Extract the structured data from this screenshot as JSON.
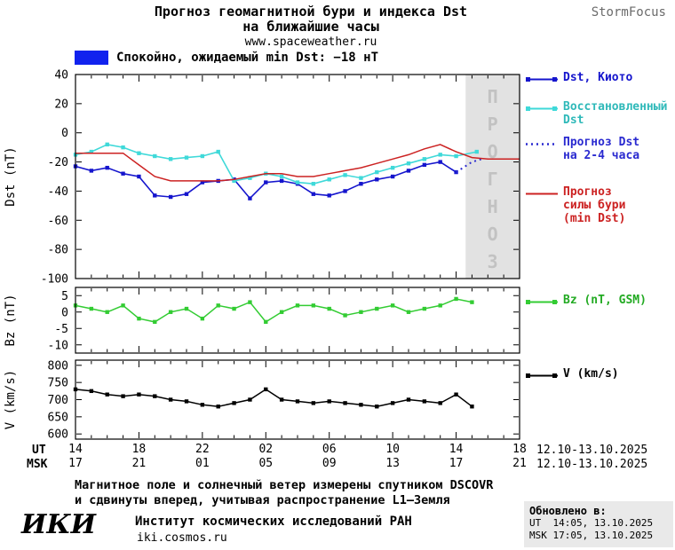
{
  "header": {
    "title_line1": "Прогноз геомагнитной бури и индекса Dst",
    "title_line2": "на ближайшие часы",
    "url": "www.spaceweather.ru",
    "brand": "StormFocus"
  },
  "status": {
    "label": "Спокойно, ожидаемый min Dst: −18 нТ",
    "box_color": "#1122ee"
  },
  "chart_data": [
    {
      "id": "dst",
      "type": "line",
      "ylabel": "Dst (nT)",
      "x_note": "hours since 12.10.2025 14:00 UT",
      "xlim": [
        0,
        28
      ],
      "ylim": [
        -100,
        40
      ],
      "yticks": [
        40,
        20,
        0,
        -20,
        -40,
        -60,
        -80,
        -100
      ],
      "xticks": [
        0,
        4,
        8,
        12,
        16,
        20,
        24,
        28
      ],
      "forecast_band": {
        "start": 24.6,
        "end": 28,
        "label": "ПРОГНОЗ"
      },
      "series": [
        {
          "key": "dst-kyoto",
          "name": "Dst, Киото",
          "color": "#1515cd",
          "marker": "square",
          "lw": 1.6,
          "x": [
            0,
            1,
            2,
            3,
            4,
            5,
            6,
            7,
            8,
            9,
            10,
            11,
            12,
            13,
            14,
            15,
            16,
            17,
            18,
            19,
            20,
            21,
            22,
            23,
            24
          ],
          "y": [
            -23,
            -26,
            -24,
            -28,
            -30,
            -43,
            -44,
            -42,
            -34,
            -33,
            -32,
            -45,
            -34,
            -33,
            -35,
            -42,
            -43,
            -40,
            -35,
            -32,
            -30,
            -26,
            -22,
            -20,
            -27
          ]
        },
        {
          "key": "dst-recovered",
          "name": "Восстановленный Dst",
          "color": "#3fd9d9",
          "marker": "square",
          "lw": 1.6,
          "x": [
            0,
            1,
            2,
            3,
            4,
            5,
            6,
            7,
            8,
            9,
            10,
            11,
            12,
            13,
            14,
            15,
            16,
            17,
            18,
            19,
            20,
            21,
            22,
            23,
            24,
            25.3
          ],
          "y": [
            -15,
            -13,
            -8,
            -10,
            -14,
            -16,
            -18,
            -17,
            -16,
            -13,
            -33,
            -31,
            -28,
            -30,
            -34,
            -35,
            -32,
            -29,
            -31,
            -27,
            -24,
            -21,
            -18,
            -15,
            -16,
            -13
          ]
        },
        {
          "key": "dst-forecast",
          "name": "Прогноз Dst на 2-4 часа",
          "color": "#2a2ad0",
          "dash": "2,4",
          "lw": 2,
          "x": [
            24,
            25,
            25.6
          ],
          "y": [
            -27,
            -20,
            -18
          ]
        },
        {
          "key": "storm-strength-forecast",
          "name": "Прогноз силы бури (min Dst)",
          "color": "#cc2222",
          "lw": 1.5,
          "x": [
            0,
            1,
            2,
            3,
            4,
            5,
            6,
            7,
            8,
            9,
            10,
            11,
            12,
            13,
            14,
            15,
            16,
            17,
            18,
            19,
            20,
            21,
            22,
            23,
            24,
            25,
            26,
            27,
            28
          ],
          "y": [
            -14,
            -14,
            -14,
            -14,
            -22,
            -30,
            -33,
            -33,
            -33,
            -33,
            -32,
            -30,
            -28,
            -28,
            -30,
            -30,
            -28,
            -26,
            -24,
            -21,
            -18,
            -15,
            -11,
            -8,
            -13,
            -17,
            -18,
            -18,
            -18
          ]
        }
      ]
    },
    {
      "id": "bz",
      "type": "line",
      "ylabel": "Bz (nT)",
      "xlim": [
        0,
        28
      ],
      "ylim": [
        -12.5,
        7.5
      ],
      "yticks": [
        5,
        0,
        -5,
        -10
      ],
      "xticks": [
        0,
        4,
        8,
        12,
        16,
        20,
        24,
        28
      ],
      "series": [
        {
          "key": "bz-gsm",
          "name": "Bz (nT, GSM)",
          "color": "#33cc33",
          "marker": "square",
          "lw": 1.5,
          "x": [
            0,
            1,
            2,
            3,
            4,
            5,
            6,
            7,
            8,
            9,
            10,
            11,
            12,
            13,
            14,
            15,
            16,
            17,
            18,
            19,
            20,
            21,
            22,
            23,
            24,
            25
          ],
          "y": [
            2,
            1,
            0,
            2,
            -2,
            -3,
            0,
            1,
            -2,
            2,
            1,
            3,
            -3,
            0,
            2,
            2,
            1,
            -1,
            0,
            1,
            2,
            0,
            1,
            2,
            4,
            3
          ]
        }
      ]
    },
    {
      "id": "v",
      "type": "line",
      "ylabel": "V (km/s)",
      "xlim": [
        0,
        28
      ],
      "ylim": [
        585,
        815
      ],
      "yticks": [
        800,
        750,
        700,
        650,
        600
      ],
      "xticks": [
        0,
        4,
        8,
        12,
        16,
        20,
        24,
        28
      ],
      "series": [
        {
          "key": "solar-wind-speed",
          "name": "V (km/s)",
          "color": "#000000",
          "marker": "square",
          "lw": 1.5,
          "x": [
            0,
            1,
            2,
            3,
            4,
            5,
            6,
            7,
            8,
            9,
            10,
            11,
            12,
            13,
            14,
            15,
            16,
            17,
            18,
            19,
            20,
            21,
            22,
            23,
            24,
            25
          ],
          "y": [
            730,
            725,
            715,
            710,
            715,
            710,
            700,
            695,
            685,
            680,
            690,
            700,
            730,
            700,
            695,
            690,
            695,
            690,
            685,
            680,
            690,
            700,
            695,
            690,
            715,
            680
          ]
        }
      ]
    }
  ],
  "legends": {
    "dst": [
      {
        "label": "Dst, Киото",
        "color": "#1515cd"
      },
      {
        "label": "Восстановленный\nDst",
        "color": "#2fb9b9"
      },
      {
        "label": "Прогноз Dst\nна 2-4 часа",
        "color": "#2a2ad0"
      },
      {
        "label": "Прогноз\nсилы бури\n(min Dst)",
        "color": "#cc2222"
      }
    ],
    "bz": [
      {
        "label": "Bz (nT, GSM)",
        "color": "#22aa22"
      }
    ],
    "v": [
      {
        "label": "V (km/s)",
        "color": "#000000"
      }
    ]
  },
  "xaxis": {
    "ut_label": "UT",
    "msk_label": "MSK",
    "ut_ticks": [
      "14",
      "18",
      "22",
      "02",
      "06",
      "10",
      "14",
      "18"
    ],
    "msk_ticks": [
      "17",
      "21",
      "01",
      "05",
      "09",
      "13",
      "17",
      "21"
    ],
    "ut_date": "12.10-13.10.2025",
    "msk_date": "12.10-13.10.2025"
  },
  "footer": {
    "note_line1": "Магнитное поле и солнечный ветер измерены спутником DSCOVR",
    "note_line2": "и сдвинуты вперед, учитывая распространение L1—Земля",
    "logo": "ИКИ",
    "institute": "Институт космических исследований РАН",
    "site": "iki.cosmos.ru",
    "updated_label": "Обновлено в:",
    "updated_ut": "UT  14:05, 13.10.2025",
    "updated_msk": "MSK 17:05, 13.10.2025"
  }
}
